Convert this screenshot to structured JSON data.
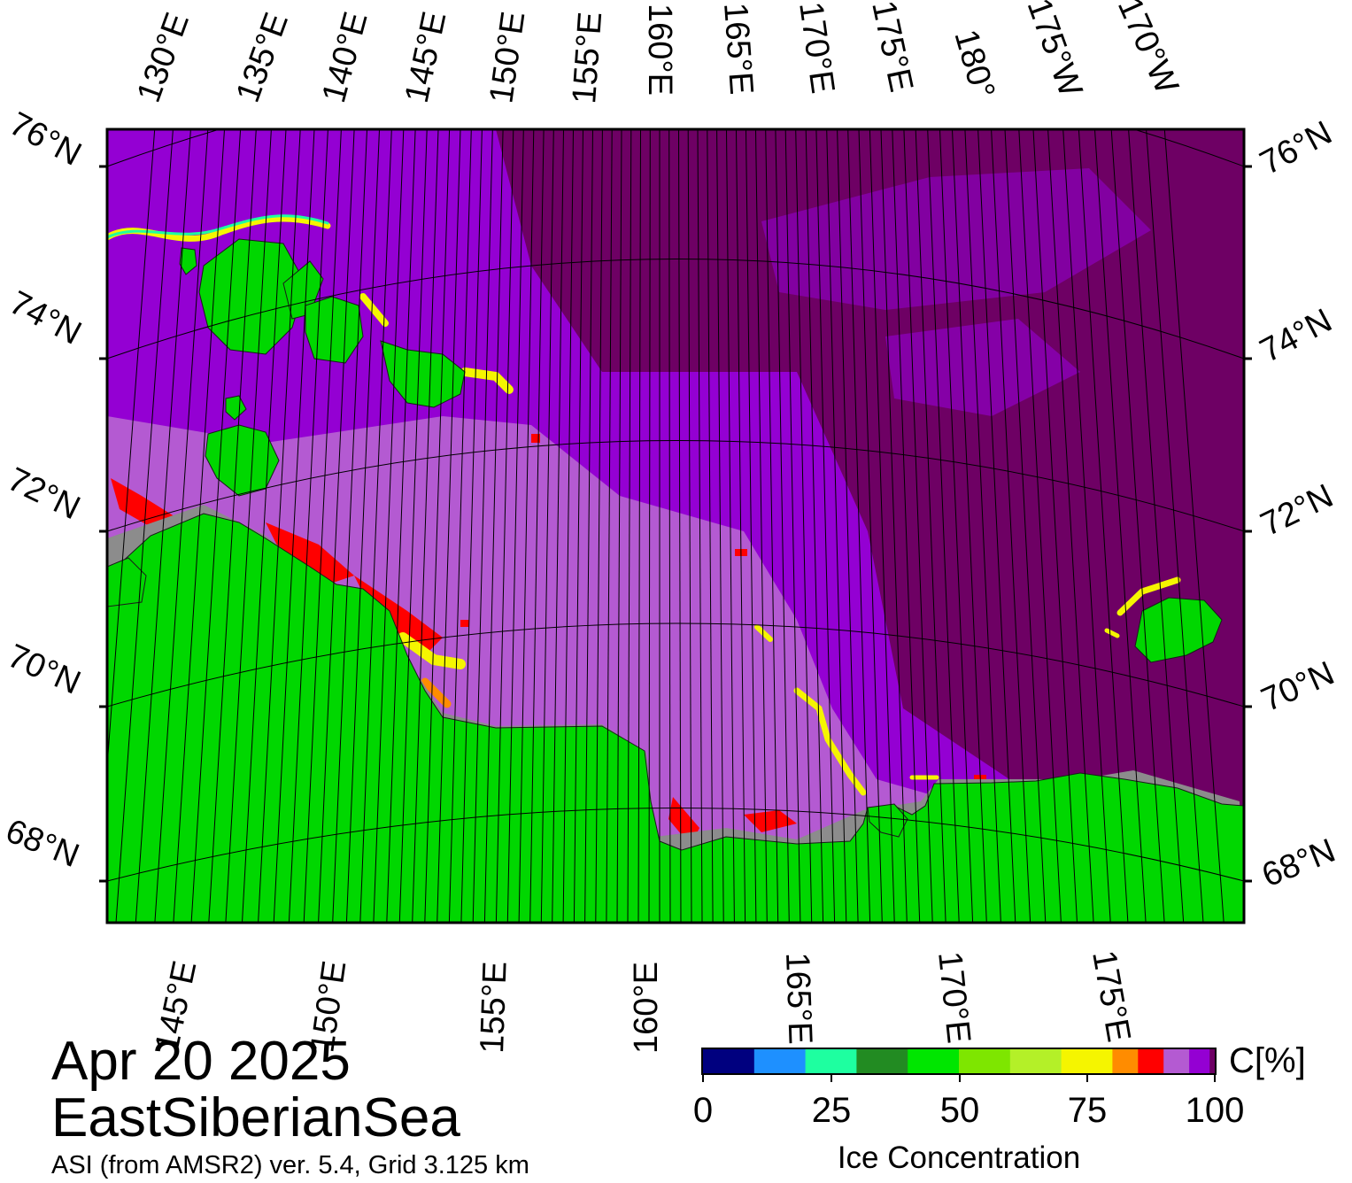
{
  "map": {
    "date": "Apr 20 2025",
    "region": "EastSiberianSea",
    "product": "ASI (from AMSR2) ver. 5.4,  Grid 3.125 km",
    "top_lon_labels": [
      "130°E",
      "135°E",
      "140°E",
      "145°E",
      "150°E",
      "155°E",
      "160°E",
      "165°E",
      "170°E",
      "175°E",
      "180°",
      "175°W",
      "170°W"
    ],
    "bottom_lon_labels": [
      "145°E",
      "150°E",
      "155°E",
      "160°E",
      "165°E",
      "170°E",
      "175°E"
    ],
    "lat_labels": [
      "76°N",
      "74°N",
      "72°N",
      "70°N",
      "68°N"
    ]
  },
  "legend": {
    "title": "Ice Concentration",
    "unit": "C[%]",
    "ticks": [
      "0",
      "25",
      "50",
      "75",
      "100"
    ],
    "bins": [
      {
        "range": "0-10",
        "color": "#00007f"
      },
      {
        "range": "10-20",
        "color": "#1e90ff"
      },
      {
        "range": "20-30",
        "color": "#1effa0"
      },
      {
        "range": "30-40",
        "color": "#228b22"
      },
      {
        "range": "40-50",
        "color": "#00e600"
      },
      {
        "range": "50-60",
        "color": "#7ee600"
      },
      {
        "range": "60-70",
        "color": "#b4f028"
      },
      {
        "range": "70-80",
        "color": "#f5f500"
      },
      {
        "range": "80-85",
        "color": "#ff8c00"
      },
      {
        "range": "85-90",
        "color": "#ff0000"
      },
      {
        "range": "90-95",
        "color": "#b45ad2"
      },
      {
        "range": "95-99",
        "color": "#9400d3"
      },
      {
        "range": "99-100",
        "color": "#6e0064"
      }
    ]
  },
  "colors": {
    "land": "#00d700",
    "ice_full": "#6e0064",
    "ice_high": "#9400d3",
    "ice_mid": "#b45ad2",
    "ice_low": "#ff0000",
    "ice_edge": "#f5f500",
    "coast_mask": "#8c8c8c"
  }
}
